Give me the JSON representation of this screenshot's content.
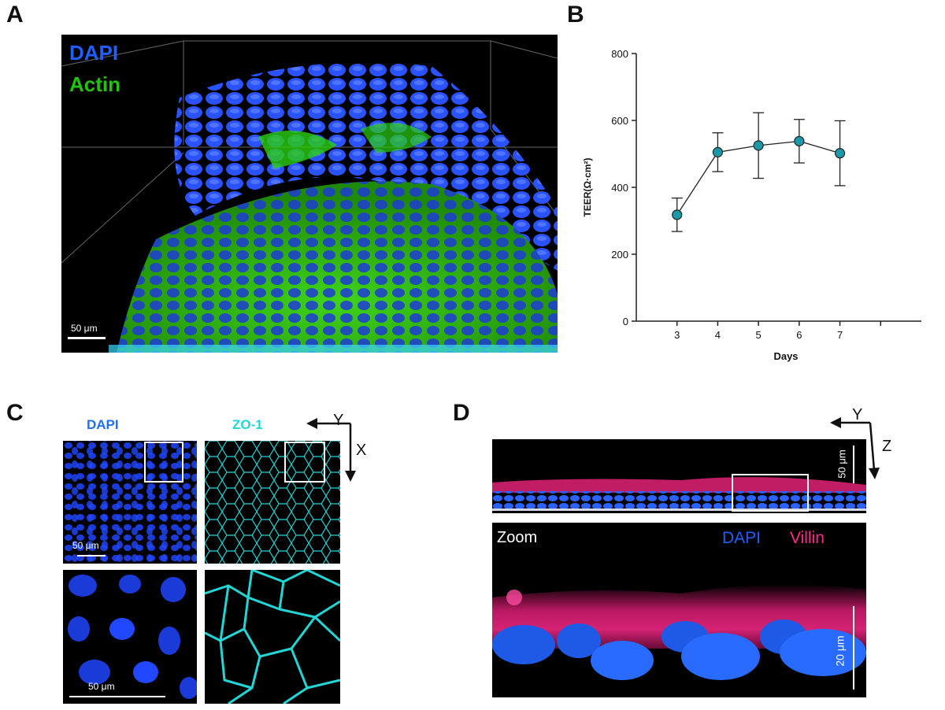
{
  "panels": {
    "a": {
      "letter": "A",
      "label_dapi": "DAPI",
      "label_actin": "Actin",
      "scale_bar": "50 μm"
    },
    "b": {
      "letter": "B"
    },
    "c": {
      "letter": "C",
      "label_dapi": "DAPI",
      "label_zo1": "ZO-1",
      "axis_y": "Y",
      "axis_x": "X",
      "scale_bar_top": "50 μm",
      "scale_bar_bottom": "50 μm"
    },
    "d": {
      "letter": "D",
      "axis_y": "Y",
      "axis_z": "Z",
      "scale_bar_top": "50 μm",
      "zoom_label": "Zoom",
      "label_dapi": "DAPI",
      "label_villin": "Villin",
      "scale_bar_bottom": "20 μm"
    }
  },
  "colors": {
    "dapi": "#1f5fff",
    "actin": "#22c40a",
    "zo1": "#22d6d6",
    "villin": "#ff2a8a",
    "marker_fill": "#1a9aa8"
  },
  "chart_data": {
    "type": "line",
    "xlabel": "Days",
    "ylabel": "TEER(Ω·cm²)",
    "x": [
      3,
      4,
      5,
      6,
      7
    ],
    "xlim": [
      2,
      9
    ],
    "ylim": [
      0,
      800
    ],
    "yticks": [
      0,
      200,
      400,
      600,
      800
    ],
    "xticks": [
      3,
      4,
      5,
      6,
      7
    ],
    "series": [
      {
        "values": [
          318,
          505,
          525,
          538,
          502
        ],
        "error": [
          50,
          58,
          98,
          65,
          97
        ]
      }
    ],
    "grid": false
  }
}
